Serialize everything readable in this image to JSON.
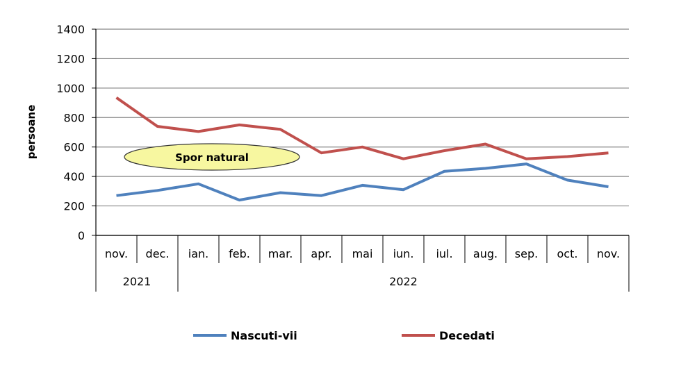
{
  "chart_data": {
    "type": "line",
    "title": "",
    "xlabel": "",
    "ylabel": "persoane",
    "ylim": [
      0,
      1400
    ],
    "yticks": [
      0,
      200,
      400,
      600,
      800,
      1000,
      1200,
      1400
    ],
    "grid": true,
    "legend_position": "bottom",
    "categories": [
      "nov.",
      "dec.",
      "ian.",
      "feb.",
      "mar.",
      "apr.",
      "mai",
      "iun.",
      "iul.",
      "aug.",
      "sep.",
      "oct.",
      "nov."
    ],
    "year_groups": [
      {
        "label": "2021",
        "count": 2
      },
      {
        "label": "2022",
        "count": 11
      }
    ],
    "annotation": "Spor natural",
    "series": [
      {
        "name": "Nascuti-vii",
        "color": "#4f81bd",
        "values": [
          270,
          305,
          350,
          240,
          290,
          270,
          340,
          310,
          435,
          455,
          485,
          375,
          330
        ]
      },
      {
        "name": "Decedati",
        "color": "#c0504d",
        "values": [
          935,
          740,
          705,
          750,
          720,
          560,
          600,
          520,
          575,
          620,
          520,
          535,
          560
        ]
      }
    ]
  }
}
